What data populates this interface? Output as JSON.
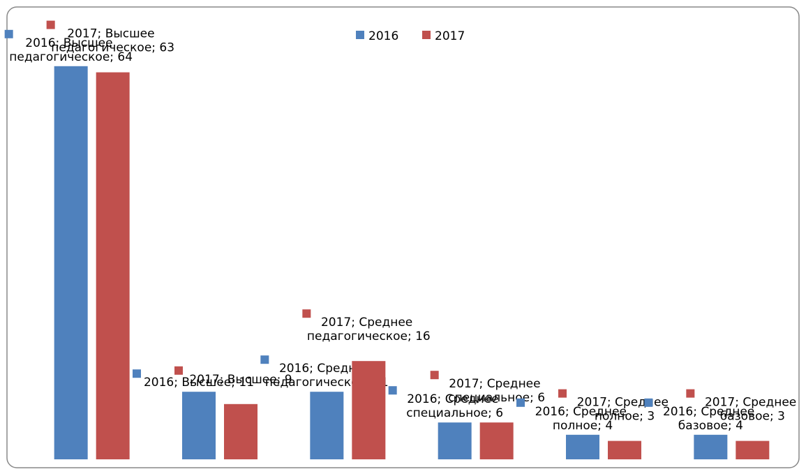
{
  "chart_data": {
    "type": "bar",
    "categories": [
      "Высшее педагогическое",
      "Высшее",
      "Среднее педагогическое",
      "Среднее специальное",
      "Среднее полное",
      "Среднее базовое"
    ],
    "series": [
      {
        "name": "2016",
        "color": "#4f81bd",
        "values": [
          64,
          11,
          11,
          6,
          4,
          4
        ],
        "value_labels": [
          "2016; Высшее педагогическое; 64",
          "2016; Высшее; 11",
          "2016; Среднее педагогическое; 11",
          "2016; Среднее специальное; 6",
          "2016; Среднее полное; 4",
          "2016; Среднее базовое; 4"
        ]
      },
      {
        "name": "2017",
        "color": "#c0504d",
        "values": [
          63,
          9,
          16,
          6,
          3,
          3
        ],
        "value_labels": [
          "2017; Высшее педагогическое; 63",
          "2017; Высшее; 9",
          "2017; Среднее педагогическое; 16",
          "2017; Среднее специальное; 6",
          "2017; Среднее полное; 3",
          "2017; Среднее базовое; 3"
        ]
      }
    ],
    "ylim": [
      0,
      70
    ],
    "legend": "top"
  }
}
